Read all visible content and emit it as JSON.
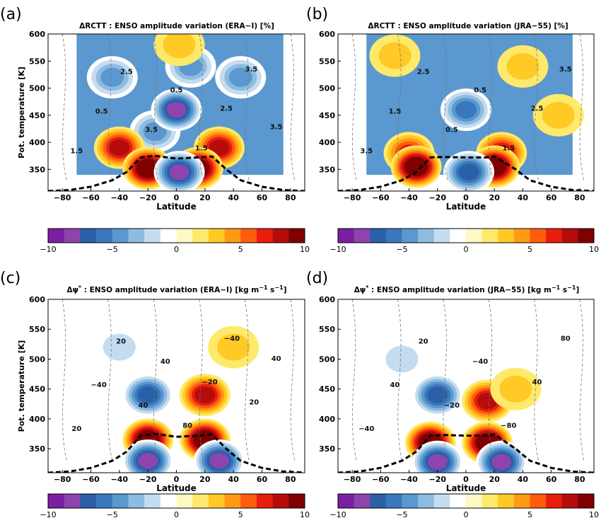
{
  "chart_data": [
    {
      "panel_label": "(a)",
      "type": "heatmap",
      "title": "ΔRCTT : ENSO amplitude variation (ERA−I) [%]",
      "xlabel": "Latitude",
      "ylabel": "Pot. temperature [K]",
      "xlim": [
        -90,
        90
      ],
      "ylim": [
        310,
        600
      ],
      "xticks": [
        "−80",
        "−60",
        "−40",
        "−20",
        "0",
        "20",
        "40",
        "60",
        "80"
      ],
      "yticks": [
        "350",
        "400",
        "450",
        "500",
        "550",
        "600"
      ],
      "colorbar": {
        "range": [
          -10,
          10
        ],
        "ticks": [
          "−10",
          "−5",
          "0",
          "5",
          "10"
        ]
      },
      "contour_labels": [
        "1.5",
        "0.5",
        "2.5",
        "3.5",
        "0.5",
        "1.5",
        "2.5",
        "3.5",
        "3.5"
      ],
      "blobs": [
        {
          "lat": -15,
          "theta": 420,
          "value": -5
        },
        {
          "lat": 0,
          "theta": 460,
          "value": -9
        },
        {
          "lat": 10,
          "theta": 540,
          "value": -5
        },
        {
          "lat": -45,
          "theta": 520,
          "value": -5
        },
        {
          "lat": 45,
          "theta": 520,
          "value": -5
        },
        {
          "lat": -40,
          "theta": 390,
          "value": 7
        },
        {
          "lat": -20,
          "theta": 352,
          "value": 10
        },
        {
          "lat": 30,
          "theta": 390,
          "value": 7
        },
        {
          "lat": 15,
          "theta": 352,
          "value": 10
        },
        {
          "lat": 2,
          "theta": 345,
          "value": -9
        },
        {
          "lat": 2,
          "theta": 580,
          "value": 3
        }
      ]
    },
    {
      "panel_label": "(b)",
      "type": "heatmap",
      "title": "ΔRCTT : ENSO amplitude variation (JRA−55) [%]",
      "xlabel": "Latitude",
      "ylabel": "",
      "xlim": [
        -90,
        90
      ],
      "ylim": [
        310,
        600
      ],
      "xticks": [
        "−80",
        "−60",
        "−40",
        "−20",
        "0",
        "20",
        "40",
        "60",
        "80"
      ],
      "yticks": [
        "350",
        "400",
        "450",
        "500",
        "550",
        "600"
      ],
      "colorbar": {
        "range": [
          -10,
          10
        ],
        "ticks": [
          "−10",
          "−5",
          "0",
          "5",
          "10"
        ]
      },
      "contour_labels": [
        "3.5",
        "1.5",
        "2.5",
        "0.5",
        "0.5",
        "1.5",
        "2.5",
        "3.5"
      ],
      "blobs": [
        {
          "lat": 0,
          "theta": 460,
          "value": -6
        },
        {
          "lat": -50,
          "theta": 560,
          "value": 3
        },
        {
          "lat": 40,
          "theta": 540,
          "value": 3
        },
        {
          "lat": -40,
          "theta": 380,
          "value": 6
        },
        {
          "lat": -35,
          "theta": 355,
          "value": 10
        },
        {
          "lat": 25,
          "theta": 380,
          "value": 7
        },
        {
          "lat": 20,
          "theta": 355,
          "value": 10
        },
        {
          "lat": 2,
          "theta": 345,
          "value": -8
        },
        {
          "lat": 65,
          "theta": 450,
          "value": 2
        }
      ]
    },
    {
      "panel_label": "(c)",
      "type": "heatmap",
      "title_main": "Δψ",
      "title_sup": "*",
      "title_rest": " : ENSO amplitude variation (ERA−I) [kg m",
      "title_unit_sup1": "−1",
      "title_mid": " s",
      "title_unit_sup2": "−1",
      "title_end": "]",
      "xlabel": "Latitude",
      "ylabel": "Pot. temperature [K]",
      "xlim": [
        -90,
        90
      ],
      "ylim": [
        310,
        600
      ],
      "xticks": [
        "−80",
        "−60",
        "−40",
        "−20",
        "0",
        "20",
        "40",
        "60",
        "80"
      ],
      "yticks": [
        "350",
        "400",
        "450",
        "500",
        "550",
        "600"
      ],
      "colorbar": {
        "range": [
          -10,
          10
        ],
        "ticks": [
          "−10",
          "−5",
          "0",
          "5",
          "10"
        ]
      },
      "contour_labels": [
        "20",
        "−40",
        "20",
        "40",
        "40",
        "80",
        "−20",
        "−40",
        "20",
        "40"
      ],
      "blobs": [
        {
          "lat": -20,
          "theta": 440,
          "value": -7
        },
        {
          "lat": -40,
          "theta": 520,
          "value": -3
        },
        {
          "lat": 20,
          "theta": 440,
          "value": 8
        },
        {
          "lat": 40,
          "theta": 520,
          "value": 2
        },
        {
          "lat": -20,
          "theta": 365,
          "value": 10
        },
        {
          "lat": 20,
          "theta": 365,
          "value": 10
        },
        {
          "lat": -20,
          "theta": 330,
          "value": -9
        },
        {
          "lat": 30,
          "theta": 330,
          "value": -9
        }
      ]
    },
    {
      "panel_label": "(d)",
      "type": "heatmap",
      "title_main": "Δψ",
      "title_sup": "*",
      "title_rest": " : ENSO amplitude variation (JRA−55) [kg m",
      "title_unit_sup1": "−1",
      "title_mid": " s",
      "title_unit_sup2": "−1",
      "title_end": "]",
      "xlabel": "Latitude",
      "ylabel": "",
      "xlim": [
        -90,
        90
      ],
      "ylim": [
        310,
        600
      ],
      "xticks": [
        "−80",
        "−60",
        "−40",
        "−20",
        "0",
        "20",
        "40",
        "60",
        "80"
      ],
      "yticks": [
        "350",
        "400",
        "450",
        "500",
        "550",
        "600"
      ],
      "colorbar": {
        "range": [
          -10,
          10
        ],
        "ticks": [
          "−10",
          "−5",
          "0",
          "5",
          "10"
        ]
      },
      "contour_labels": [
        "−40",
        "40",
        "20",
        "−20",
        "−40",
        "−80",
        "40",
        "80"
      ],
      "blobs": [
        {
          "lat": -20,
          "theta": 440,
          "value": -7
        },
        {
          "lat": -45,
          "theta": 500,
          "value": -3
        },
        {
          "lat": 15,
          "theta": 430,
          "value": 7
        },
        {
          "lat": 35,
          "theta": 450,
          "value": 3
        },
        {
          "lat": -25,
          "theta": 360,
          "value": 10
        },
        {
          "lat": 15,
          "theta": 360,
          "value": 10
        },
        {
          "lat": -20,
          "theta": 328,
          "value": -9
        },
        {
          "lat": 25,
          "theta": 328,
          "value": -9
        }
      ]
    }
  ],
  "tropopause_guides": {
    "ERA-I": [
      [
        -90,
        310
      ],
      [
        -75,
        312
      ],
      [
        -60,
        318
      ],
      [
        -45,
        330
      ],
      [
        -35,
        345
      ],
      [
        -25,
        372
      ],
      [
        -15,
        375
      ],
      [
        0,
        370
      ],
      [
        15,
        372
      ],
      [
        25,
        374
      ],
      [
        35,
        350
      ],
      [
        45,
        330
      ],
      [
        60,
        318
      ],
      [
        75,
        312
      ],
      [
        90,
        310
      ]
    ],
    "JRA-55": [
      [
        -90,
        310
      ],
      [
        -75,
        312
      ],
      [
        -60,
        318
      ],
      [
        -45,
        330
      ],
      [
        -35,
        345
      ],
      [
        -25,
        372
      ],
      [
        -15,
        373
      ],
      [
        0,
        372
      ],
      [
        15,
        372
      ],
      [
        20,
        374
      ],
      [
        35,
        350
      ],
      [
        45,
        330
      ],
      [
        60,
        318
      ],
      [
        75,
        312
      ],
      [
        90,
        310
      ]
    ]
  },
  "colors": {
    "ramp": [
      "#7b1fa2",
      "#8e44ad",
      "#2b5fa8",
      "#3a78bd",
      "#5a98cf",
      "#8dbce0",
      "#c4dcef",
      "#ffffff",
      "#fff8c4",
      "#ffe96b",
      "#ffc926",
      "#ff9a17",
      "#ff5d0d",
      "#e81d0e",
      "#b50c0c",
      "#800000"
    ]
  }
}
